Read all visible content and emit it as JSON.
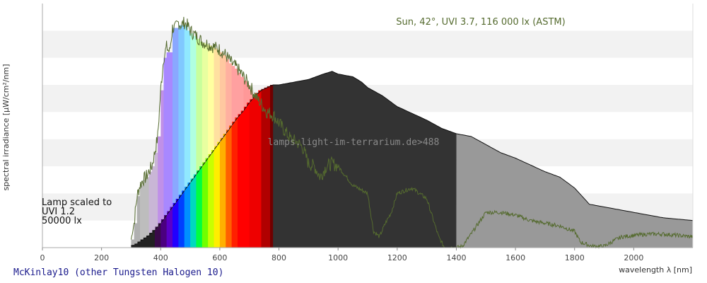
{
  "chart_data": {
    "type": "area",
    "xlabel": "wavelength λ [nm]",
    "ylabel": "spectral irradiance [µW/cm²/nm]",
    "xlim": [
      0,
      2200
    ],
    "ylim": [
      0,
      9
    ],
    "x_ticks": [
      0,
      200,
      400,
      600,
      800,
      1000,
      1200,
      1400,
      1600,
      1800,
      2000
    ],
    "grid": "horizontal bands",
    "annotation": "Sun, 42°, UVI 3.7, 116 000 lx (ASTM)",
    "lamp_note": [
      "Lamp scaled to",
      "UVI 1.2",
      "50000 lx"
    ],
    "watermark": "lamps.light-im-terrarium.de>488",
    "lamp_name": "McKinlay10 (other Tungsten Halogen 10)",
    "series": [
      {
        "role": "sun",
        "color": "#556b2f",
        "x": [
          300,
          310,
          320,
          330,
          340,
          350,
          360,
          370,
          380,
          390,
          400,
          410,
          420,
          430,
          440,
          450,
          460,
          470,
          480,
          490,
          500,
          520,
          540,
          560,
          580,
          600,
          620,
          640,
          660,
          680,
          700,
          720,
          740,
          760,
          780,
          800,
          820,
          840,
          860,
          880,
          900,
          920,
          940,
          960,
          980,
          1000,
          1050,
          1100,
          1120,
          1140,
          1160,
          1180,
          1200,
          1250,
          1300,
          1340,
          1360,
          1380,
          1400,
          1420,
          1450,
          1500,
          1550,
          1600,
          1650,
          1700,
          1750,
          1800,
          1820,
          1860,
          1900,
          1940,
          1960,
          2000,
          2050,
          2100,
          2150,
          2200
        ],
        "values": [
          0.3,
          0.9,
          1.9,
          2.3,
          2.5,
          2.6,
          2.8,
          3.0,
          3.5,
          4.1,
          5.8,
          7.0,
          7.4,
          7.2,
          8.1,
          8.1,
          8.3,
          8.2,
          8.3,
          8.2,
          8.0,
          7.8,
          7.6,
          7.5,
          7.4,
          7.3,
          7.1,
          6.8,
          6.6,
          6.3,
          6.0,
          5.6,
          5.3,
          5.0,
          4.9,
          4.6,
          4.3,
          4.0,
          3.9,
          3.7,
          3.1,
          3.0,
          2.6,
          3.0,
          3.1,
          3.0,
          2.3,
          2.0,
          0.6,
          0.4,
          0.9,
          1.3,
          2.0,
          2.2,
          1.8,
          0.4,
          0.0,
          0.0,
          0.0,
          0.05,
          0.5,
          1.3,
          1.3,
          1.2,
          1.0,
          0.9,
          0.8,
          0.6,
          0.2,
          0.05,
          0.05,
          0.3,
          0.4,
          0.45,
          0.5,
          0.5,
          0.45,
          0.4
        ]
      },
      {
        "role": "lamp",
        "color": "#333333",
        "x": [
          300,
          320,
          340,
          360,
          380,
          400,
          420,
          440,
          460,
          480,
          500,
          520,
          540,
          560,
          580,
          600,
          620,
          640,
          660,
          680,
          700,
          720,
          740,
          760,
          780,
          800,
          850,
          900,
          950,
          980,
          1000,
          1050,
          1080,
          1100,
          1150,
          1200,
          1300,
          1350,
          1400,
          1450,
          1500,
          1550,
          1600,
          1700,
          1750,
          1800,
          1850,
          1900,
          2000,
          2100,
          2150,
          2200
        ],
        "values": [
          0.05,
          0.15,
          0.3,
          0.45,
          0.65,
          0.9,
          1.2,
          1.5,
          1.8,
          2.1,
          2.4,
          2.7,
          3.0,
          3.3,
          3.6,
          3.9,
          4.2,
          4.5,
          4.8,
          5.05,
          5.35,
          5.6,
          5.8,
          5.9,
          6.0,
          6.0,
          6.1,
          6.2,
          6.4,
          6.5,
          6.4,
          6.3,
          6.1,
          5.9,
          5.6,
          5.2,
          4.7,
          4.4,
          4.2,
          4.1,
          3.8,
          3.5,
          3.3,
          2.8,
          2.6,
          2.2,
          1.6,
          1.5,
          1.3,
          1.1,
          1.05,
          1.0
        ]
      }
    ]
  }
}
